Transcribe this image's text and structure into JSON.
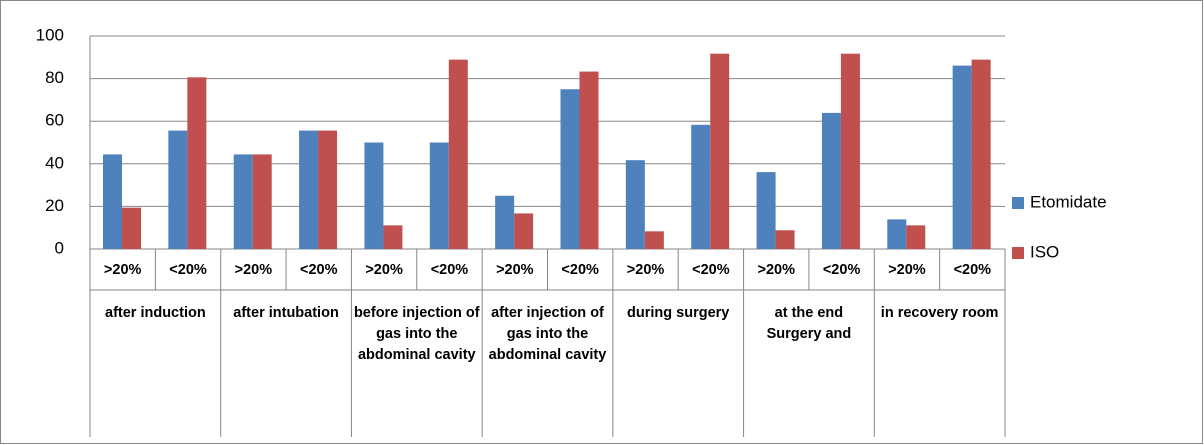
{
  "chart_data": {
    "type": "bar",
    "categories": [
      ">20%",
      "<20%",
      ">20%",
      "<20%",
      ">20%",
      "<20%",
      ">20%",
      "<20%",
      ">20%",
      "<20%",
      ">20%",
      "<20%",
      ">20%",
      "<20%"
    ],
    "groups": [
      "after induction",
      "after intubation",
      "before injection of gas into the abdominal cavity",
      "after injection of gas into the abdominal cavity",
      "during surgery",
      "at the end Surgery and",
      "in recovery room"
    ],
    "series": [
      {
        "name": "Etomidate",
        "color": "#4f81bd",
        "values": [
          44.4,
          55.6,
          44.4,
          55.6,
          50,
          50,
          25,
          75,
          41.7,
          58.3,
          36.1,
          63.9,
          13.9,
          86.1
        ]
      },
      {
        "name": "ISO",
        "color": "#c0504d",
        "values": [
          19.4,
          80.6,
          44.4,
          55.6,
          11.1,
          88.9,
          16.7,
          83.3,
          8.3,
          91.7,
          8.8,
          91.7,
          11.1,
          88.9
        ]
      }
    ],
    "ylim": [
      0,
      100
    ],
    "yticks": [
      0,
      20,
      40,
      60,
      80,
      100
    ],
    "grid": true,
    "legend": "right"
  }
}
